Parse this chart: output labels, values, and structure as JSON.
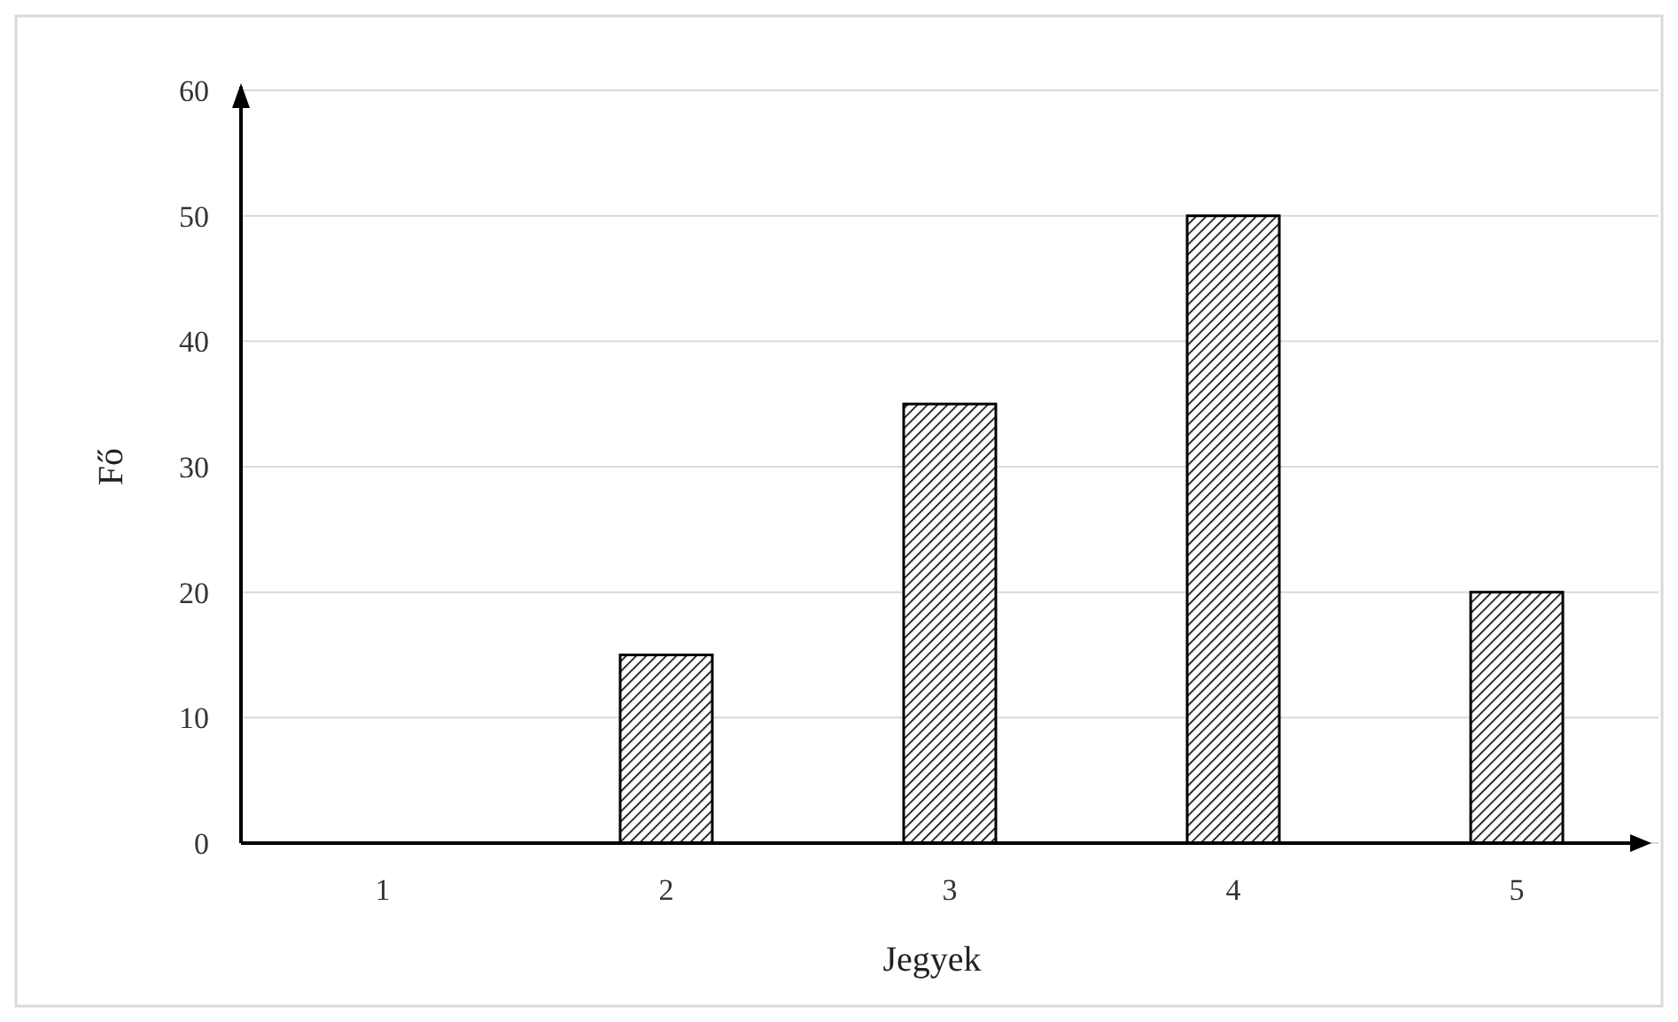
{
  "chart_data": {
    "type": "bar",
    "xlabel": "Jegyek",
    "ylabel": "Fő",
    "categories": [
      "1",
      "2",
      "3",
      "4",
      "5"
    ],
    "values": [
      0,
      15,
      35,
      50,
      20
    ],
    "color": "#000000",
    "ylim": [
      0,
      60
    ],
    "yticks": [
      0,
      10,
      20,
      30,
      40,
      50,
      60
    ],
    "grid": "y"
  }
}
